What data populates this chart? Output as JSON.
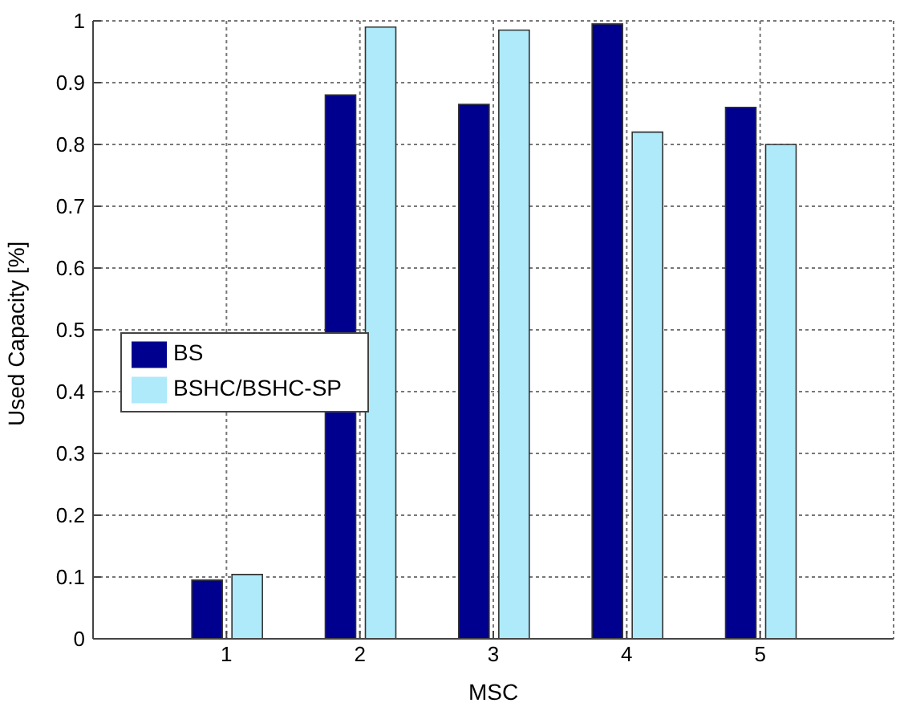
{
  "chart_data": {
    "type": "bar",
    "xlabel": "MSC",
    "ylabel": "Used Capacity [%]",
    "x": [
      1,
      2,
      3,
      4,
      5
    ],
    "xlim": [
      0,
      6
    ],
    "xticks": [
      1,
      2,
      3,
      4,
      5
    ],
    "ylim": [
      0,
      1
    ],
    "yticks": [
      0,
      0.1,
      0.2,
      0.3,
      0.4,
      0.5,
      0.6,
      0.7,
      0.8,
      0.9,
      1
    ],
    "series": [
      {
        "name": "BS",
        "color": "#00008f",
        "values": [
          0.095,
          0.88,
          0.865,
          0.995,
          0.86
        ]
      },
      {
        "name": "BSHC/BSHC-SP",
        "color": "#aeeafa",
        "values": [
          0.104,
          0.99,
          0.985,
          0.82,
          0.8
        ]
      }
    ],
    "grid": true,
    "legend": "left"
  }
}
